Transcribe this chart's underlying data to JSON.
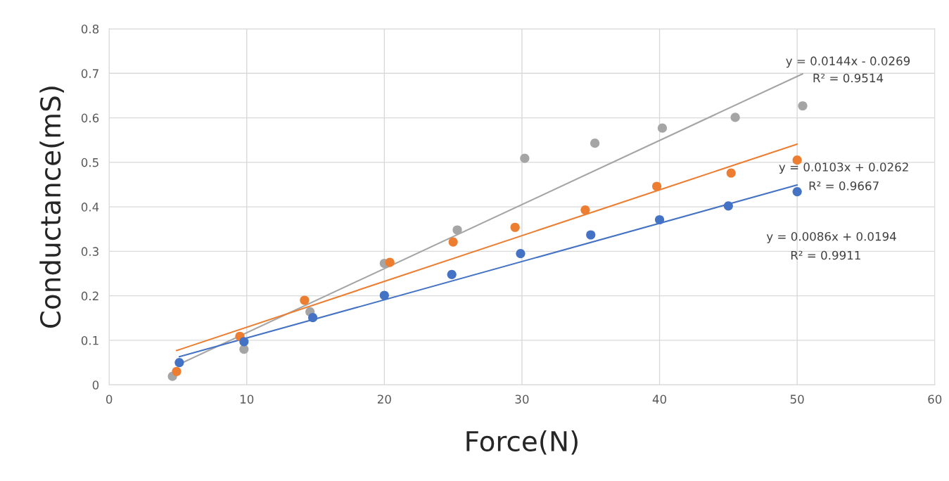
{
  "chart_data": {
    "type": "scatter",
    "xlabel": "Force(N)",
    "ylabel": "Conductance(mS)",
    "xlim": [
      0,
      60
    ],
    "xticks": [
      0,
      10,
      20,
      30,
      40,
      50,
      60
    ],
    "ylim": [
      0,
      0.8
    ],
    "yticks": [
      0,
      0.1,
      0.2,
      0.3,
      0.4,
      0.5,
      0.6,
      0.7,
      0.8
    ],
    "grid": true,
    "series": [
      {
        "marker": "circle",
        "color": "#a5a5a5",
        "x": [
          4.6,
          9.8,
          14.6,
          20,
          25.3,
          30.2,
          35.3,
          40.2,
          45.5,
          50.4
        ],
        "values": [
          0.019,
          0.08,
          0.164,
          0.273,
          0.348,
          0.509,
          0.543,
          0.577,
          0.601,
          0.627
        ]
      },
      {
        "marker": "circle",
        "color": "#ed7d31",
        "x": [
          4.9,
          9.5,
          14.2,
          20.4,
          25,
          29.5,
          34.6,
          39.8,
          45.2,
          50
        ],
        "values": [
          0.03,
          0.109,
          0.19,
          0.275,
          0.321,
          0.354,
          0.393,
          0.446,
          0.476,
          0.505
        ]
      },
      {
        "marker": "circle",
        "color": "#4472c4",
        "x": [
          5.1,
          9.8,
          14.8,
          20,
          24.9,
          29.9,
          35,
          40,
          45,
          50
        ],
        "values": [
          0.05,
          0.097,
          0.151,
          0.201,
          0.248,
          0.295,
          0.337,
          0.371,
          0.402,
          0.434
        ]
      },
      {
        "type": "line",
        "color": "#a5a5a5",
        "x": [
          5,
          50.4
        ],
        "values": [
          0.045,
          0.699
        ]
      },
      {
        "type": "line",
        "color": "#ed7d31",
        "x": [
          4.9,
          50
        ],
        "values": [
          0.077,
          0.541
        ]
      },
      {
        "type": "line",
        "color": "#4472c4",
        "x": [
          5.1,
          50
        ],
        "values": [
          0.063,
          0.449
        ]
      }
    ],
    "annotations": [
      "y = 0.0144x - 0.0269",
      "R² = 0.9514",
      "y = 0.0103x + 0.0262",
      "R² = 0.9667",
      "y = 0.0086x + 0.0194",
      "R² = 0.9911"
    ]
  }
}
